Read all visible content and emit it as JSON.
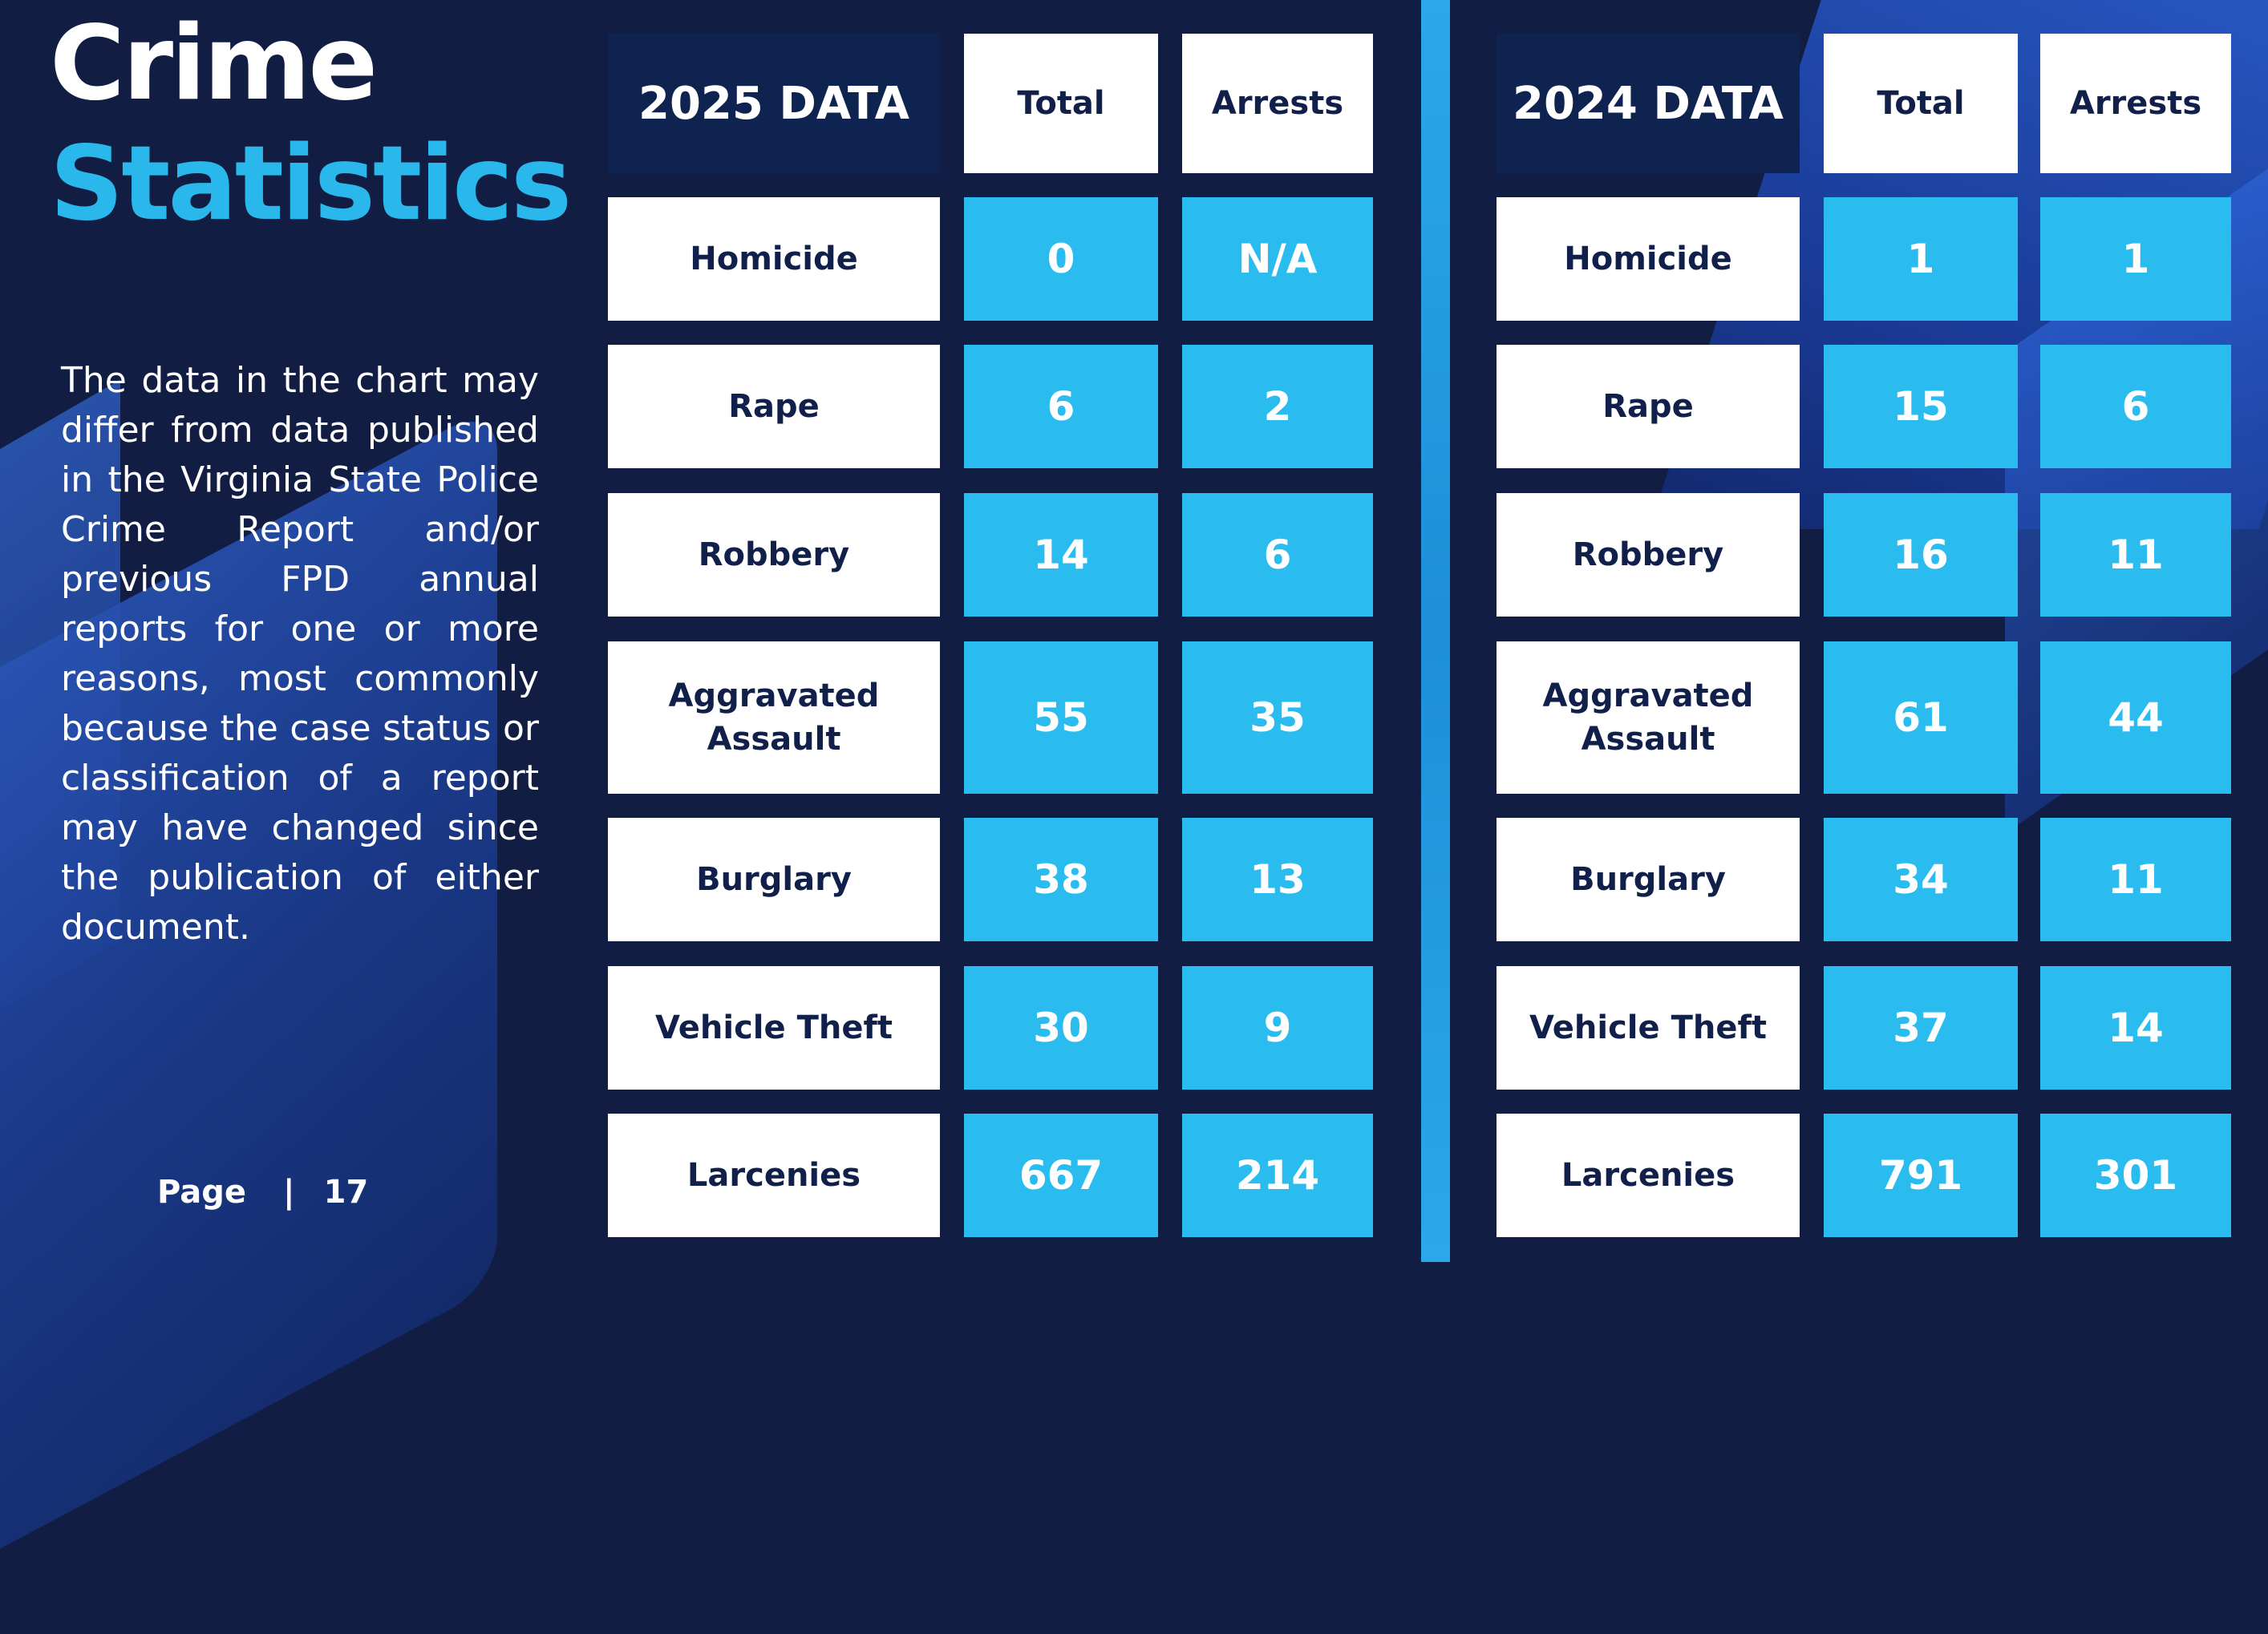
{
  "title": {
    "line1": "Crime",
    "line2": "Statistics"
  },
  "disclaimer": "The data in the chart may differ from data published in the Virginia State Police Crime Report and/or previous FPD annual reports for one or more reasons, most commonly because the case status or classification of a report may have changed since the publication of either document.",
  "footer": {
    "label": "Page",
    "separator": "|",
    "number": "17"
  },
  "tables": [
    {
      "header": "2025 DATA",
      "columns": [
        "Total",
        "Arrests"
      ],
      "rows": [
        {
          "label": "Homicide",
          "total": "0",
          "arrests": "N/A"
        },
        {
          "label": "Rape",
          "total": "6",
          "arrests": "2"
        },
        {
          "label": "Robbery",
          "total": "14",
          "arrests": "6"
        },
        {
          "label": "Aggravated Assault",
          "total": "55",
          "arrests": "35"
        },
        {
          "label": "Burglary",
          "total": "38",
          "arrests": "13"
        },
        {
          "label": "Vehicle Theft",
          "total": "30",
          "arrests": "9"
        },
        {
          "label": "Larcenies",
          "total": "667",
          "arrests": "214"
        }
      ]
    },
    {
      "header": "2024 DATA",
      "columns": [
        "Total",
        "Arrests"
      ],
      "rows": [
        {
          "label": "Homicide",
          "total": "1",
          "arrests": "1"
        },
        {
          "label": "Rape",
          "total": "15",
          "arrests": "6"
        },
        {
          "label": "Robbery",
          "total": "16",
          "arrests": "11"
        },
        {
          "label": "Aggravated Assault",
          "total": "61",
          "arrests": "44"
        },
        {
          "label": "Burglary",
          "total": "34",
          "arrests": "11"
        },
        {
          "label": "Vehicle Theft",
          "total": "37",
          "arrests": "14"
        },
        {
          "label": "Larcenies",
          "total": "791",
          "arrests": "301"
        }
      ]
    }
  ],
  "colors": {
    "background": "#121d44",
    "accent": "#2bbcef",
    "header_dark": "#0f2350",
    "text_dark": "#10204a"
  }
}
